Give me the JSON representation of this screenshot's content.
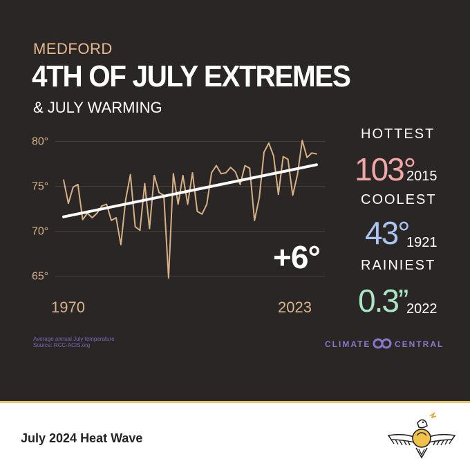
{
  "header": {
    "location": "MEDFORD",
    "title": "4TH OF JULY EXTREMES",
    "subtitle": "& JULY WARMING"
  },
  "chart_data": {
    "type": "line",
    "x_start": 1970,
    "x_end": 2023,
    "x_tick_labels": [
      "1970",
      "2023"
    ],
    "y_tick_labels": [
      "80°",
      "75°",
      "70°",
      "65°"
    ],
    "y_ticks": [
      80,
      75,
      70,
      65
    ],
    "ylim": [
      64.5,
      80.5
    ],
    "grid": true,
    "colors": {
      "series": "#d6b185",
      "trend": "#ffffff",
      "grid": "#4a403a"
    },
    "series": [
      {
        "x": [
          1970,
          1971,
          1972,
          1973,
          1974,
          1975,
          1976,
          1977,
          1978,
          1979,
          1980,
          1981,
          1982,
          1983,
          1984,
          1985,
          1986,
          1987,
          1988,
          1989,
          1990,
          1991,
          1992,
          1993,
          1994,
          1995,
          1996,
          1997,
          1998,
          1999,
          2000,
          2001,
          2002,
          2003,
          2004,
          2005,
          2006,
          2007,
          2008,
          2009,
          2010,
          2011,
          2012,
          2013,
          2014,
          2015,
          2016,
          2017,
          2018,
          2019,
          2020,
          2021,
          2022,
          2023
        ],
        "y": [
          75.7,
          73.1,
          74.9,
          75.2,
          71.3,
          72.0,
          71.5,
          72.0,
          72.8,
          73.0,
          71.2,
          71.5,
          68.5,
          73.5,
          76.3,
          70.5,
          70.1,
          75.3,
          70.3,
          76.2,
          74.3,
          74.0,
          64.8,
          76.4,
          73.0,
          76.2,
          73.0,
          76.5,
          72.2,
          71.9,
          73.0,
          76.5,
          77.3,
          76.4,
          76.5,
          77.1,
          76.6,
          75.2,
          77.3,
          77.0,
          71.2,
          73.7,
          78.8,
          79.8,
          78.4,
          74.1,
          78.3,
          78.0,
          74.0,
          76.3,
          80.1,
          78.2,
          78.7,
          78.6
        ]
      }
    ],
    "trend": {
      "x": [
        1970,
        2023
      ],
      "y": [
        71.6,
        77.4
      ]
    },
    "annotation": "+6°"
  },
  "stats": {
    "hottest": {
      "label": "HOTTEST",
      "value": "103°",
      "year": "2015"
    },
    "coolest": {
      "label": "COOLEST",
      "value": "43°",
      "year": "1921"
    },
    "rainiest": {
      "label": "RAINIEST",
      "value": "0.3”",
      "year": "2022"
    }
  },
  "source": {
    "line1": "Average annual July temperature",
    "line2": "Source: RCC-ACIS.org"
  },
  "brand": {
    "word1": "CLIMATE",
    "word2": "CENTRAL",
    "logo_icon": "infinity-loop-icon"
  },
  "footer": {
    "caption": "July 2024 Heat Wave",
    "logo_icon": "thunderbird-icon"
  }
}
